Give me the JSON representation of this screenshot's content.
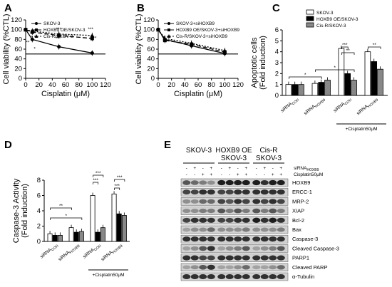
{
  "panels": {
    "A": {
      "label": "A",
      "xlabel": "Cisplatin (μM)",
      "ylabel": "Cell viability (%CTL)",
      "legend": [
        "SKOV-3",
        "HOXB9 OE/SKOV-3",
        "Cis-R/SKOV-3"
      ],
      "x_ticks": [
        "0",
        "20",
        "40",
        "60",
        "80",
        "100",
        "120"
      ],
      "y_ticks": [
        "0",
        "20",
        "40",
        "60",
        "80",
        "100",
        "120"
      ],
      "stars": [
        "**",
        "***",
        "***",
        "*",
        "***",
        "**"
      ]
    },
    "B": {
      "label": "B",
      "xlabel": "Cisplatin (μM)",
      "ylabel": "Cell viability (%CTL)",
      "legend": [
        "SKOV-3+siHOXB9",
        "HOXB9 OE/SKOV-3+siHOXB9",
        "Cis-R/SKOV-3+siHOXB9"
      ],
      "x_ticks": [
        "0",
        "20",
        "40",
        "60",
        "80",
        "100",
        "120"
      ],
      "y_ticks": [
        "0",
        "20",
        "40",
        "60",
        "80",
        "100",
        "120"
      ]
    },
    "C": {
      "label": "C",
      "ylabel": "Apoptotic cells\n(Fold induction)",
      "legend": [
        "SKOV-3",
        "HOXB9 OE/SKOV-3",
        "Cis-R/SKOV-3"
      ],
      "y_ticks": [
        "0",
        "1",
        "2",
        "3",
        "4",
        "5",
        "6"
      ],
      "groups": [
        "siRNA_CON",
        "siRNA_HOXB9",
        "siRNA_CON",
        "siRNA_HOXB9"
      ],
      "treatment": "+Cisplatin50μM",
      "stars": [
        "*",
        "*",
        "***",
        "**",
        "**"
      ]
    },
    "D": {
      "label": "D",
      "ylabel": "Caspase-3 Activity\n(Fold induction)",
      "y_ticks": [
        "0",
        "2",
        "4",
        "6",
        "8"
      ],
      "groups": [
        "siRNA_CON",
        "siRNA_HOXB9",
        "siRNA_CON",
        "siRNA_HOXB9"
      ],
      "treatment": "+Cisplatin50μM",
      "stars": [
        "**",
        "*",
        "***",
        "***",
        "***",
        "***"
      ]
    },
    "E": {
      "label": "E",
      "groups": [
        "SKOV-3",
        "HOXB9 OE\nSKOV-3",
        "Cis-R\nSKOV-3"
      ],
      "row_sirna": "siRNA",
      "row_sirna_sub": "HOXB9",
      "row_cis": "Cisplatin50μM",
      "sirna_signs": [
        "-",
        "+",
        "-",
        "+",
        "-",
        "+",
        "-",
        "+",
        "-",
        "+",
        "-",
        "+"
      ],
      "cis_signs": [
        "-",
        "-",
        "+",
        "+",
        "-",
        "-",
        "+",
        "+",
        "-",
        "-",
        "+",
        "+"
      ],
      "bands": [
        "HOXB9",
        "ERCC-1",
        "MRP-2",
        "XIAP",
        "Bcl-2",
        "Bax",
        "Caspase-3",
        "Cleaved Caspase-3",
        "PARP1",
        "Cleaved PARP",
        "α-Tubulin"
      ]
    }
  },
  "chart_data": [
    {
      "panel": "A",
      "type": "line",
      "x": [
        0,
        10,
        50,
        100
      ],
      "series": [
        {
          "name": "SKOV-3",
          "values": [
            100,
            80,
            65,
            52
          ]
        },
        {
          "name": "HOXB9 OE/SKOV-3",
          "values": [
            100,
            95,
            88,
            82
          ]
        },
        {
          "name": "Cis-R/SKOV-3",
          "values": [
            100,
            97,
            91,
            88
          ]
        }
      ],
      "xlim": [
        0,
        120
      ],
      "ylim": [
        0,
        120
      ],
      "reference_line_y": 50
    },
    {
      "panel": "B",
      "type": "line",
      "x": [
        0,
        10,
        50,
        100
      ],
      "series": [
        {
          "name": "SKOV-3+siHOXB9",
          "values": [
            100,
            80,
            67,
            51
          ]
        },
        {
          "name": "HOXB9 OE/SKOV-3+siHOXB9",
          "values": [
            100,
            78,
            70,
            54
          ]
        },
        {
          "name": "Cis-R/SKOV-3+siHOXB9",
          "values": [
            100,
            82,
            72,
            57
          ]
        }
      ],
      "xlim": [
        0,
        120
      ],
      "ylim": [
        0,
        120
      ],
      "reference_line_y": 50
    },
    {
      "panel": "C",
      "type": "bar",
      "series": [
        {
          "name": "SKOV-3",
          "values": [
            1.0,
            1.1,
            4.3,
            4.0
          ]
        },
        {
          "name": "HOXB9 OE/SKOV-3",
          "values": [
            1.0,
            1.2,
            2.0,
            3.1
          ]
        },
        {
          "name": "Cis-R/SKOV-3",
          "values": [
            1.0,
            1.4,
            1.4,
            2.4
          ]
        }
      ],
      "ylim": [
        0,
        6
      ]
    },
    {
      "panel": "D",
      "type": "bar",
      "series": [
        {
          "name": "SKOV-3",
          "values": [
            1.0,
            1.8,
            6.0,
            6.2
          ]
        },
        {
          "name": "HOXB9 OE/SKOV-3",
          "values": [
            0.8,
            1.2,
            1.2,
            3.6
          ]
        },
        {
          "name": "Cis-R/SKOV-3",
          "values": [
            0.8,
            1.3,
            1.8,
            3.4
          ]
        }
      ],
      "ylim": [
        0,
        8
      ]
    }
  ]
}
